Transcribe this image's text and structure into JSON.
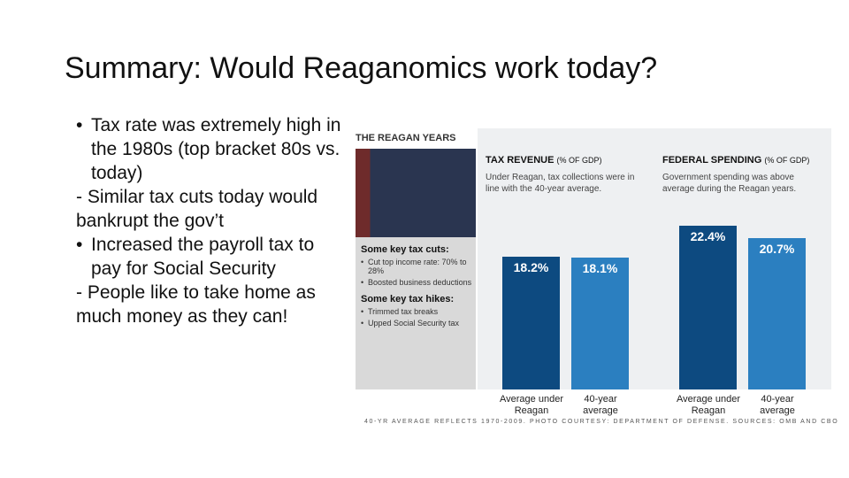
{
  "slide": {
    "title": "Summary: Would Reaganomics work today?",
    "body": [
      {
        "bullet": true,
        "text": "Tax rate was extremely high in the 1980s (top bracket 80s vs. today)"
      },
      {
        "bullet": false,
        "text": "- Similar tax cuts today would bankrupt the gov’t"
      },
      {
        "bullet": true,
        "text": "Increased the payroll tax to pay for Social Security"
      },
      {
        "bullet": false,
        "text": "- People like to take home as much money as they can!"
      }
    ]
  },
  "figure": {
    "header": "THE REAGAN YEARS",
    "sidebar": [
      {
        "heading": "Some key tax cuts:",
        "items": [
          "Cut top income rate: 70% to 28%",
          "Boosted business deductions"
        ]
      },
      {
        "heading": "Some key tax hikes:",
        "items": [
          "Trimmed tax breaks",
          "Upped Social Security tax"
        ]
      }
    ],
    "panels": [
      {
        "title": "TAX REVENUE",
        "unit": "(% OF GDP)",
        "note": "Under Reagan, tax collections were in line with the 40-year average.",
        "categories": [
          "Average under Reagan",
          "40-year average"
        ],
        "values": [
          18.2,
          18.1
        ],
        "value_labels": [
          "18.2%",
          "18.1%"
        ],
        "colors": [
          "#0d4a80",
          "#2b7fc0"
        ]
      },
      {
        "title": "FEDERAL SPENDING",
        "unit": "(% OF GDP)",
        "note": "Government spending was above average during the Reagan years.",
        "categories": [
          "Average under Reagan",
          "40-year average"
        ],
        "values": [
          22.4,
          20.7
        ],
        "value_labels": [
          "22.4%",
          "20.7%"
        ],
        "colors": [
          "#0d4a80",
          "#2b7fc0"
        ]
      }
    ],
    "footer": "40-YR AVERAGE REFLECTS 1970-2009. PHOTO COURTESY: DEPARTMENT OF DEFENSE. SOURCES: OMB AND CBO"
  }
}
